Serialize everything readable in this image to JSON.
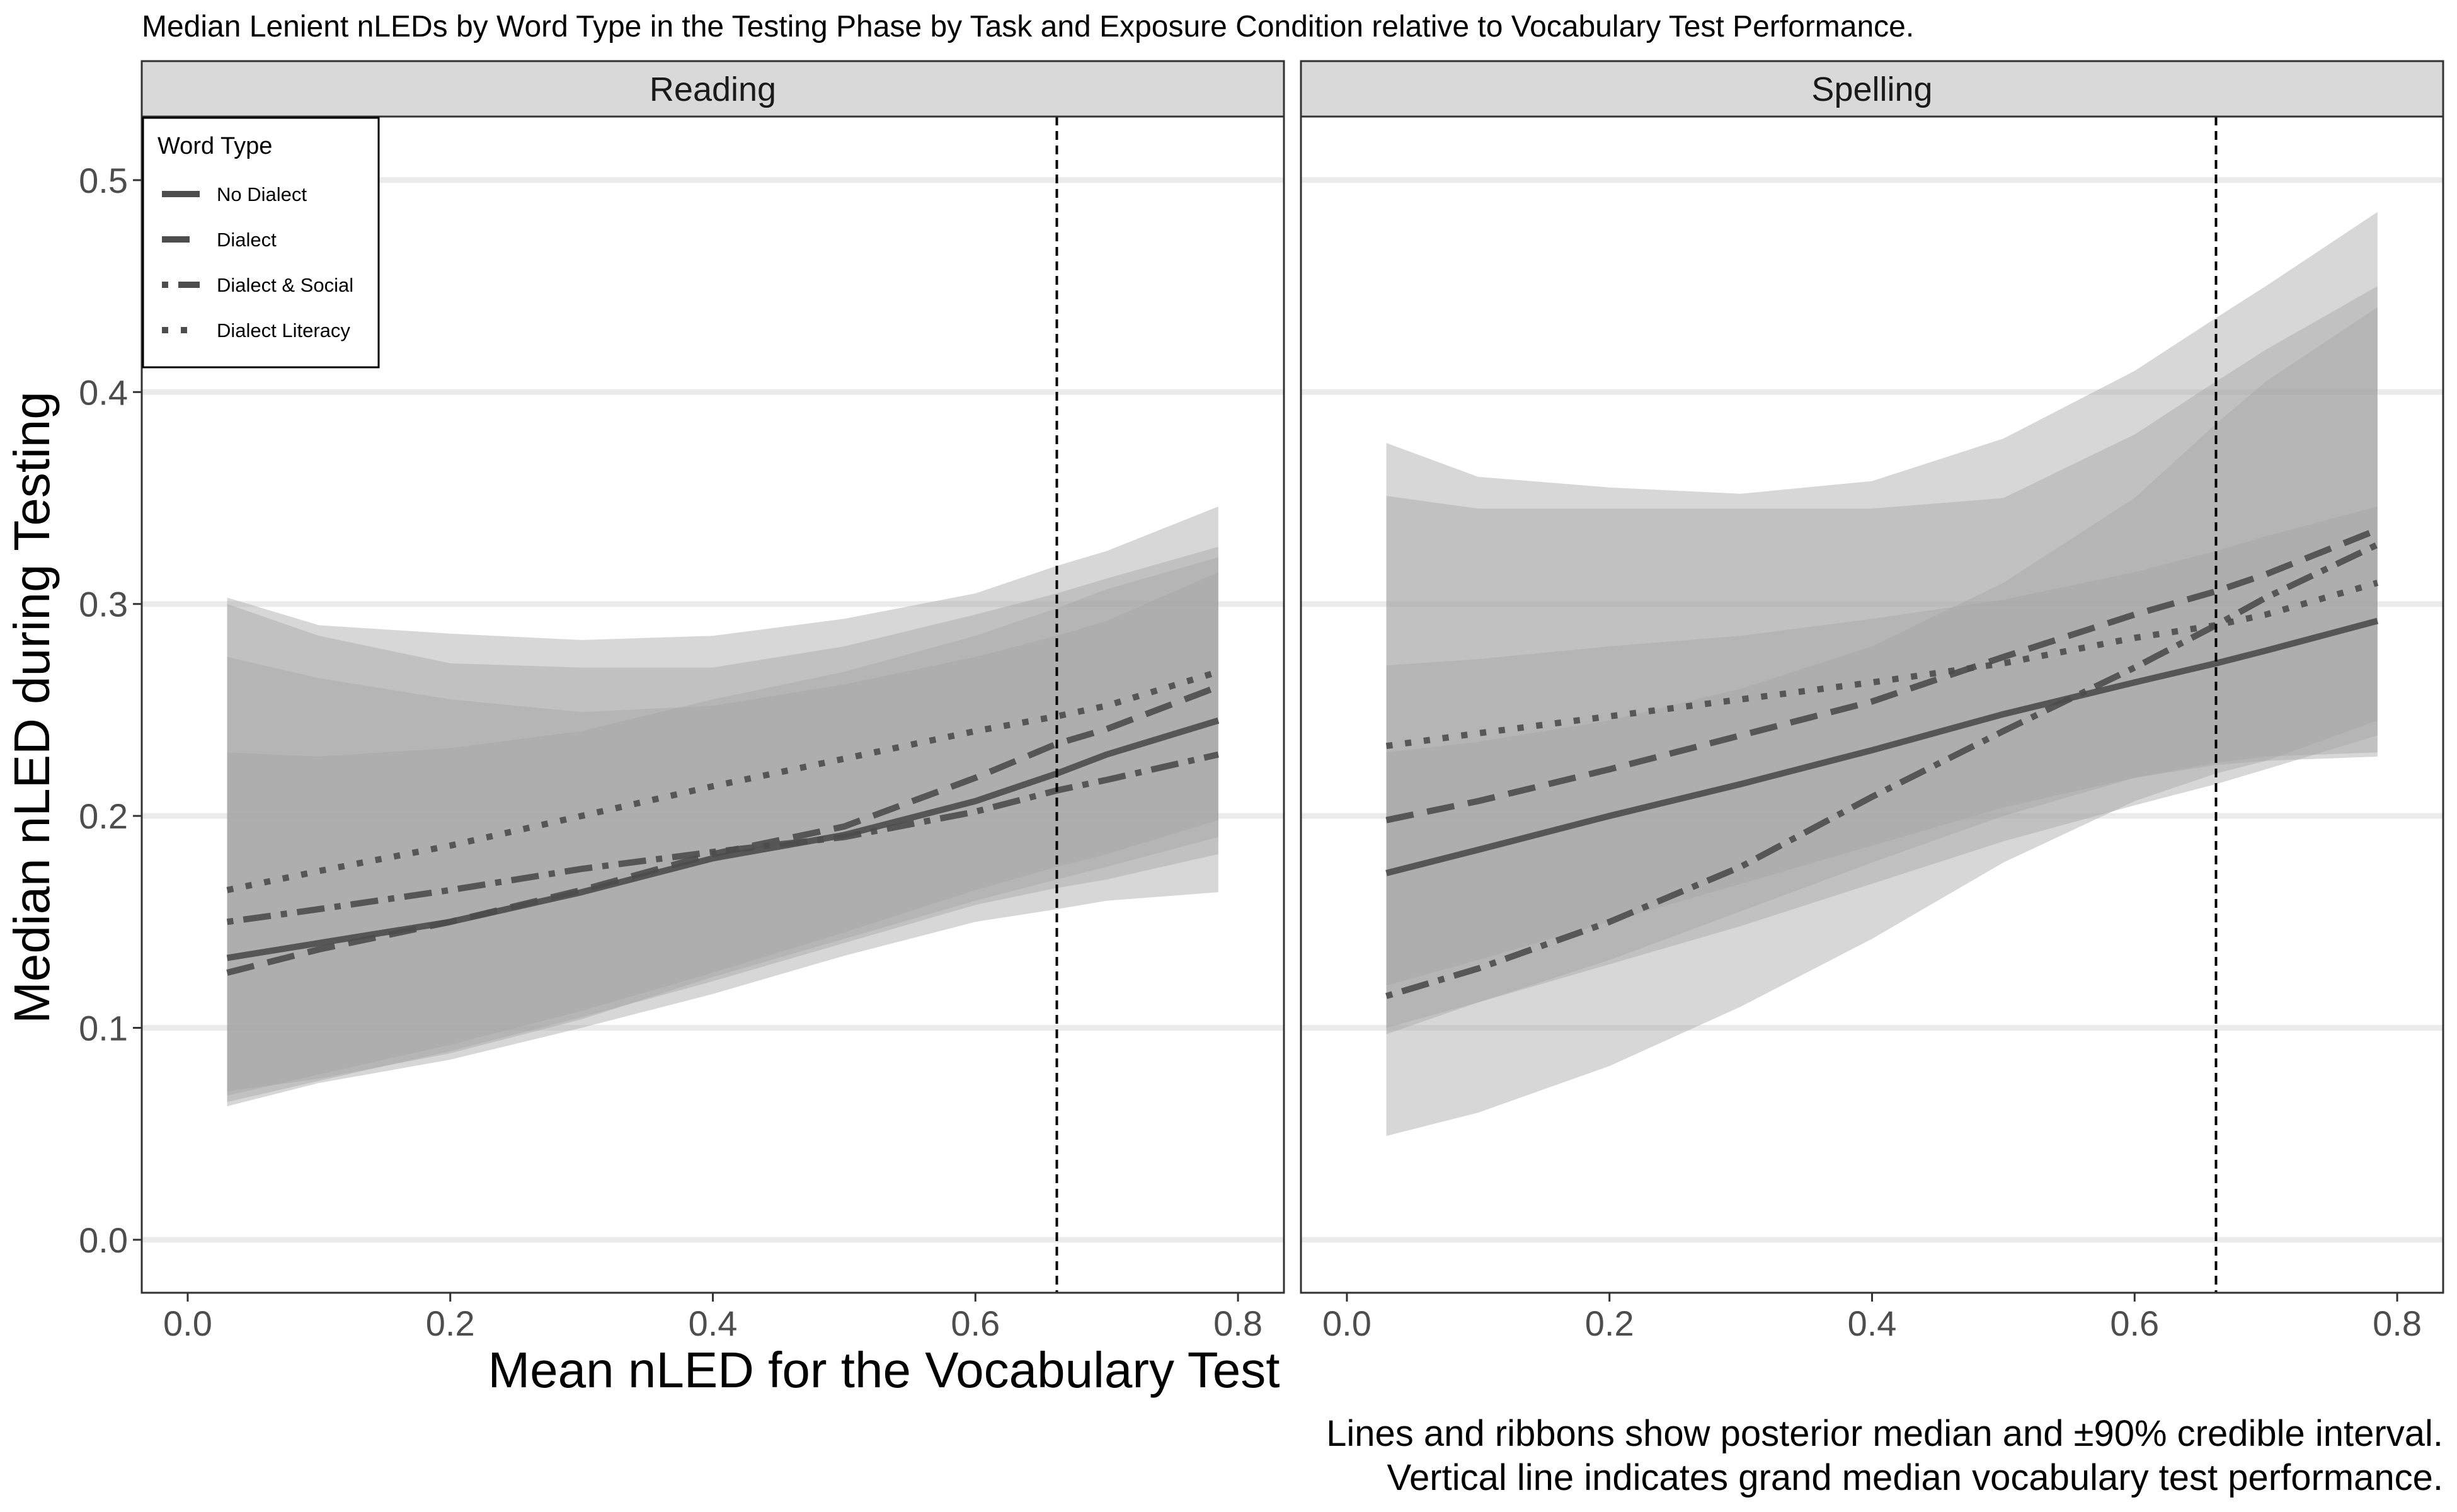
{
  "chart_data": {
    "type": "line",
    "title": "Median Lenient nLEDs by Word Type in the Testing Phase by Task and Exposure Condition relative to Vocabulary Test Performance.",
    "xlabel": "Mean nLED for the Vocabulary Test",
    "ylabel": "Median nLED during Testing",
    "caption": [
      "Lines and ribbons show posterior median and ±90% credible interval.",
      "Vertical line indicates grand median vocabulary test performance."
    ],
    "xlim": [
      -0.035,
      0.835
    ],
    "ylim": [
      -0.025,
      0.53
    ],
    "x_ticks": [
      0.0,
      0.2,
      0.4,
      0.6,
      0.8
    ],
    "x_tick_labels": [
      "0.0",
      "0.2",
      "0.4",
      "0.6",
      "0.8"
    ],
    "y_ticks": [
      0.0,
      0.1,
      0.2,
      0.3,
      0.4,
      0.5
    ],
    "y_tick_labels": [
      "0.0",
      "0.1",
      "0.2",
      "0.3",
      "0.4",
      "0.5"
    ],
    "grid": "horizontal major",
    "legend": {
      "title": "Word Type",
      "position": "top-left (inside Reading panel)",
      "entries": [
        "No Dialect",
        "Dialect",
        "Dialect & Social",
        "Dialect Literacy"
      ]
    },
    "reference_line": {
      "x": 0.662,
      "style": "dashed",
      "color": "#000000"
    },
    "colors": {
      "line": "#4d4d4d",
      "ribbon": "#a6a6a6",
      "strip": "#d9d9d9",
      "grid": "#ebebeb"
    },
    "facets": [
      {
        "name": "Reading",
        "series": [
          {
            "name": "No Dialect",
            "dash": "solid",
            "x": [
              0.03,
              0.1,
              0.2,
              0.3,
              0.4,
              0.5,
              0.6,
              0.662,
              0.7,
              0.785
            ],
            "y": [
              0.133,
              0.14,
              0.15,
              0.164,
              0.18,
              0.191,
              0.207,
              0.22,
              0.229,
              0.245
            ],
            "lower": [
              0.07,
              0.076,
              0.088,
              0.104,
              0.124,
              0.142,
              0.16,
              0.17,
              0.176,
              0.19
            ],
            "upper": [
              0.275,
              0.265,
              0.255,
              0.249,
              0.252,
              0.262,
              0.275,
              0.285,
              0.292,
              0.315
            ]
          },
          {
            "name": "Dialect",
            "dash": "dashed",
            "x": [
              0.03,
              0.1,
              0.2,
              0.3,
              0.4,
              0.5,
              0.6,
              0.662,
              0.7,
              0.785
            ],
            "y": [
              0.126,
              0.137,
              0.15,
              0.165,
              0.182,
              0.195,
              0.218,
              0.234,
              0.241,
              0.261
            ],
            "lower": [
              0.068,
              0.078,
              0.092,
              0.108,
              0.126,
              0.145,
              0.165,
              0.176,
              0.182,
              0.198
            ],
            "upper": [
              0.3,
              0.285,
              0.272,
              0.27,
              0.27,
              0.28,
              0.295,
              0.305,
              0.312,
              0.327
            ]
          },
          {
            "name": "Dialect & Social",
            "dash": "dotdash",
            "x": [
              0.03,
              0.1,
              0.2,
              0.3,
              0.4,
              0.5,
              0.6,
              0.662,
              0.7,
              0.785
            ],
            "y": [
              0.15,
              0.156,
              0.165,
              0.175,
              0.183,
              0.19,
              0.202,
              0.212,
              0.217,
              0.229
            ],
            "lower": [
              0.063,
              0.074,
              0.085,
              0.1,
              0.116,
              0.134,
              0.15,
              0.156,
              0.16,
              0.164
            ],
            "upper": [
              0.23,
              0.228,
              0.232,
              0.24,
              0.255,
              0.268,
              0.285,
              0.298,
              0.307,
              0.322
            ]
          },
          {
            "name": "Dialect Literacy",
            "dash": "dotted",
            "x": [
              0.03,
              0.1,
              0.2,
              0.3,
              0.4,
              0.5,
              0.6,
              0.662,
              0.7,
              0.785
            ],
            "y": [
              0.165,
              0.174,
              0.186,
              0.2,
              0.214,
              0.227,
              0.24,
              0.247,
              0.252,
              0.268
            ],
            "lower": [
              0.065,
              0.075,
              0.089,
              0.105,
              0.122,
              0.14,
              0.158,
              0.166,
              0.17,
              0.182
            ],
            "upper": [
              0.303,
              0.29,
              0.286,
              0.283,
              0.285,
              0.293,
              0.305,
              0.318,
              0.325,
              0.346
            ]
          }
        ]
      },
      {
        "name": "Spelling",
        "series": [
          {
            "name": "No Dialect",
            "dash": "solid",
            "x": [
              0.03,
              0.1,
              0.2,
              0.3,
              0.4,
              0.5,
              0.6,
              0.662,
              0.7,
              0.785
            ],
            "y": [
              0.173,
              0.184,
              0.2,
              0.215,
              0.231,
              0.248,
              0.263,
              0.272,
              0.278,
              0.292
            ],
            "lower": [
              0.097,
              0.112,
              0.132,
              0.155,
              0.178,
              0.2,
              0.218,
              0.225,
              0.228,
              0.23
            ],
            "upper": [
              0.271,
              0.274,
              0.28,
              0.285,
              0.293,
              0.302,
              0.315,
              0.325,
              0.332,
              0.346
            ]
          },
          {
            "name": "Dialect",
            "dash": "dashed",
            "x": [
              0.03,
              0.1,
              0.2,
              0.3,
              0.4,
              0.5,
              0.6,
              0.662,
              0.7,
              0.785
            ],
            "y": [
              0.198,
              0.207,
              0.222,
              0.238,
              0.254,
              0.275,
              0.295,
              0.306,
              0.314,
              0.335
            ],
            "lower": [
              0.1,
              0.112,
              0.13,
              0.148,
              0.168,
              0.188,
              0.205,
              0.215,
              0.222,
              0.238
            ],
            "upper": [
              0.351,
              0.345,
              0.345,
              0.345,
              0.345,
              0.35,
              0.38,
              0.405,
              0.42,
              0.45
            ]
          },
          {
            "name": "Dialect & Social",
            "dash": "dotdash",
            "x": [
              0.03,
              0.1,
              0.2,
              0.3,
              0.4,
              0.5,
              0.6,
              0.662,
              0.7,
              0.785
            ],
            "y": [
              0.115,
              0.128,
              0.15,
              0.176,
              0.209,
              0.24,
              0.27,
              0.29,
              0.303,
              0.328
            ],
            "lower": [
              0.049,
              0.06,
              0.082,
              0.11,
              0.142,
              0.178,
              0.207,
              0.22,
              0.226,
              0.245
            ],
            "upper": [
              0.23,
              0.235,
              0.245,
              0.26,
              0.28,
              0.31,
              0.35,
              0.385,
              0.405,
              0.44
            ]
          },
          {
            "name": "Dialect Literacy",
            "dash": "dotted",
            "x": [
              0.03,
              0.1,
              0.2,
              0.3,
              0.4,
              0.5,
              0.6,
              0.662,
              0.7,
              0.785
            ],
            "y": [
              0.233,
              0.239,
              0.247,
              0.255,
              0.263,
              0.272,
              0.284,
              0.29,
              0.295,
              0.31
            ],
            "lower": [
              0.12,
              0.132,
              0.15,
              0.168,
              0.186,
              0.204,
              0.218,
              0.224,
              0.226,
              0.228
            ],
            "upper": [
              0.376,
              0.36,
              0.355,
              0.352,
              0.358,
              0.378,
              0.41,
              0.435,
              0.45,
              0.485
            ]
          }
        ]
      }
    ]
  }
}
